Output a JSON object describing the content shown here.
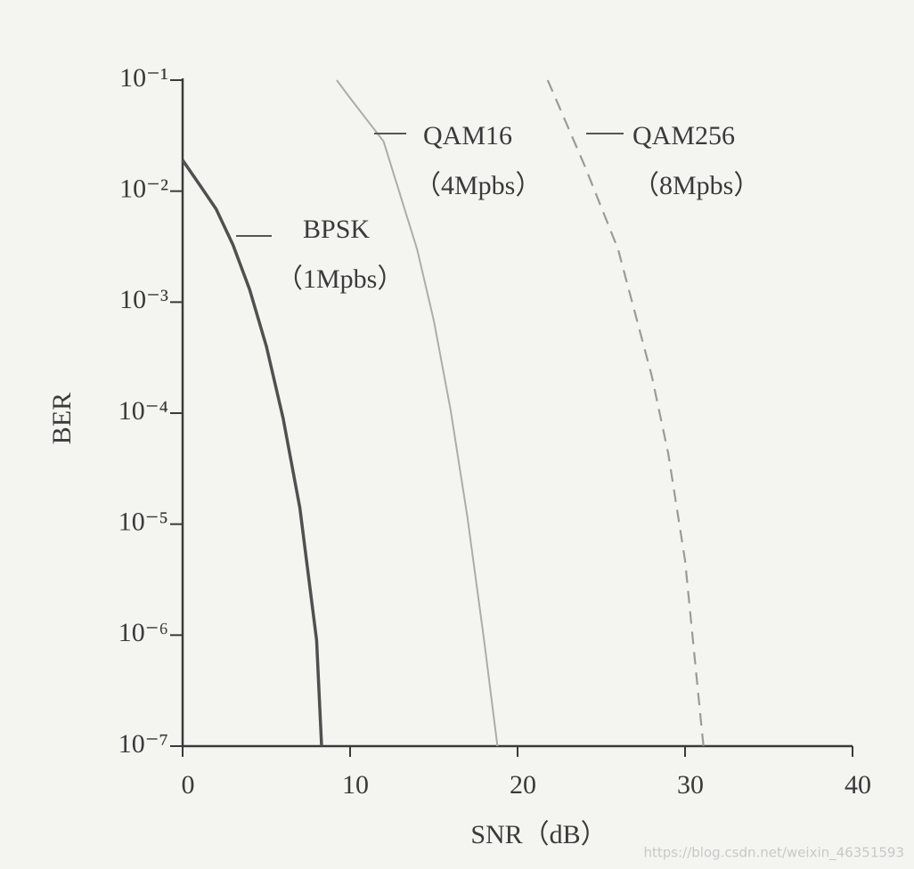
{
  "chart_data": {
    "type": "line",
    "xlabel": "SNR（dB）",
    "ylabel": "BER",
    "log_y": true,
    "grid": false,
    "xlim": [
      0,
      40
    ],
    "xticks": [
      0,
      10,
      20,
      30,
      40
    ],
    "ylim": [
      1e-07,
      0.1
    ],
    "yticks": [
      {
        "value": 0.1,
        "label": "10⁻¹"
      },
      {
        "value": 0.01,
        "label": "10⁻²"
      },
      {
        "value": 0.001,
        "label": "10⁻³"
      },
      {
        "value": 0.0001,
        "label": "10⁻⁴"
      },
      {
        "value": 1e-05,
        "label": "10⁻⁵"
      },
      {
        "value": 1e-06,
        "label": "10⁻⁶"
      },
      {
        "value": 1e-07,
        "label": "10⁻⁷"
      }
    ],
    "series": [
      {
        "name": "BPSK",
        "detail": "（1Mpbs）",
        "color": "#505050",
        "dashed": false,
        "x": [
          0,
          1,
          2,
          3,
          4,
          5,
          6,
          7,
          8,
          8.3
        ],
        "values": [
          0.019,
          0.0115,
          0.0069,
          0.0033,
          0.0013,
          0.0004,
          9e-05,
          1.4e-05,
          9e-07,
          1e-07
        ]
      },
      {
        "name": "QAM16",
        "detail": "（4Mpbs）",
        "color": "#acacac",
        "dashed": false,
        "x": [
          9.2,
          10,
          12,
          14,
          15,
          16,
          17,
          18,
          18.8
        ],
        "values": [
          0.1,
          0.069,
          0.028,
          0.003,
          0.00068,
          0.000107,
          1.17e-05,
          9e-07,
          1e-07
        ]
      },
      {
        "name": "QAM256",
        "detail": "（8Mpbs）",
        "color": "#9a9a9a",
        "dashed": true,
        "x": [
          21.8,
          24,
          26,
          28,
          29,
          30,
          31,
          31.1
        ],
        "values": [
          0.1,
          0.017,
          0.003,
          0.00022,
          4.3e-05,
          4.7e-06,
          1.4e-07,
          1e-07
        ]
      }
    ],
    "watermark": "https://blog.csdn.net/weixin_46351593"
  }
}
